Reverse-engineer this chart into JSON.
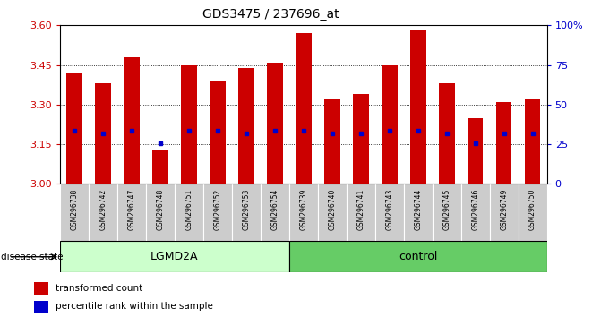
{
  "title": "GDS3475 / 237696_at",
  "samples": [
    "GSM296738",
    "GSM296742",
    "GSM296747",
    "GSM296748",
    "GSM296751",
    "GSM296752",
    "GSM296753",
    "GSM296754",
    "GSM296739",
    "GSM296740",
    "GSM296741",
    "GSM296743",
    "GSM296744",
    "GSM296745",
    "GSM296746",
    "GSM296749",
    "GSM296750"
  ],
  "transformed_count": [
    3.42,
    3.38,
    3.48,
    3.13,
    3.45,
    3.39,
    3.44,
    3.46,
    3.57,
    3.32,
    3.34,
    3.45,
    3.58,
    3.38,
    3.25,
    3.31,
    3.32
  ],
  "percentile_rank": [
    3.2,
    3.19,
    3.2,
    3.155,
    3.2,
    3.2,
    3.19,
    3.2,
    3.2,
    3.19,
    3.19,
    3.2,
    3.2,
    3.19,
    3.155,
    3.19,
    3.19
  ],
  "groups": {
    "LGMD2A": [
      0,
      1,
      2,
      3,
      4,
      5,
      6,
      7
    ],
    "control": [
      8,
      9,
      10,
      11,
      12,
      13,
      14,
      15,
      16
    ]
  },
  "ylim": [
    3.0,
    3.6
  ],
  "yticks": [
    3.0,
    3.15,
    3.3,
    3.45,
    3.6
  ],
  "right_yticks": [
    0,
    25,
    50,
    75,
    100
  ],
  "right_ylabels": [
    "0",
    "25",
    "50",
    "75",
    "100%"
  ],
  "bar_color": "#cc0000",
  "dot_color": "#0000cc",
  "lgmd2a_color": "#ccffcc",
  "control_color": "#66cc66",
  "bar_width": 0.55,
  "ylabel_color": "#cc0000",
  "right_ylabel_color": "#0000cc",
  "tick_label_bg": "#cccccc",
  "lgmd2a_count": 8,
  "control_count": 9
}
